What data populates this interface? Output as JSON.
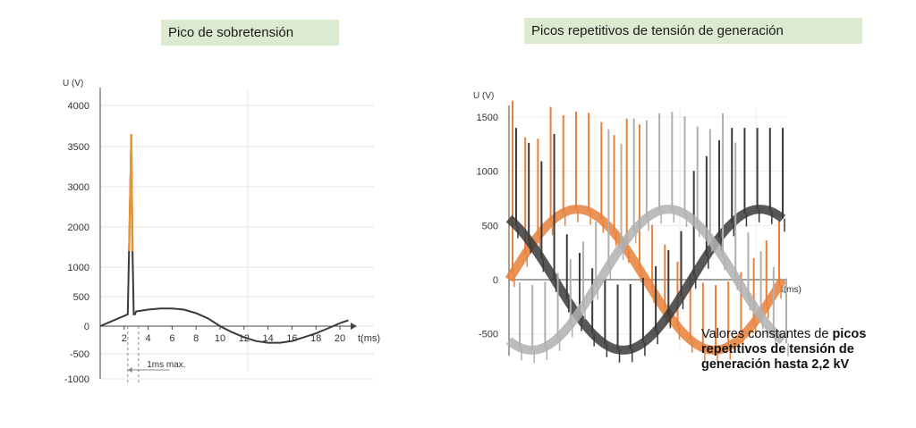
{
  "left_title": "Pico de sobretensión",
  "right_title": "Picos repetitivos de tensión de generación",
  "annotation": {
    "prefix": "Valores constantes de ",
    "bold": "picos repetitivos de tensión de generación hasta 2,2 kV"
  },
  "colors": {
    "orange": "#e8803a",
    "spike_orange": "#e9962c",
    "dark": "#3a3a3a",
    "gray": "#b0b0b0",
    "box": "#dcebcf"
  },
  "chart_data": [
    {
      "type": "line",
      "title": "Pico de sobretensión",
      "ylabel": "U (V)",
      "xlabel": "t(ms)",
      "yticks": [
        4000,
        3500,
        3000,
        2000,
        1000,
        500,
        0,
        -500,
        -1000
      ],
      "xticks": [
        2,
        4,
        6,
        8,
        10,
        12,
        14,
        16,
        18,
        20
      ],
      "x": [
        0,
        2.3,
        2.4,
        2.6,
        2.7,
        2.8,
        2.9,
        3.0,
        4,
        5,
        6,
        7,
        8,
        9,
        10,
        11,
        12,
        13,
        14,
        15,
        16,
        17,
        18,
        19,
        20,
        20.7
      ],
      "y": [
        0,
        200,
        1350,
        3650,
        1350,
        200,
        200,
        250,
        280,
        300,
        300,
        280,
        220,
        130,
        0,
        -110,
        -200,
        -270,
        -300,
        -300,
        -270,
        -200,
        -130,
        -40,
        50,
        100
      ],
      "spike_threshold": 1400,
      "annotation_text": "1ms max.",
      "grid": true
    },
    {
      "type": "line",
      "title": "Picos repetitivos de tensión de generación",
      "ylabel": "U (V)",
      "xlabel": "t(ms)",
      "yticks": [
        1500,
        1000,
        500,
        0,
        -500
      ],
      "ylim": [
        -650,
        1650
      ],
      "grid": true,
      "series": [
        {
          "color": "orange",
          "amplitude": 650,
          "phase": 0,
          "spike_level": 1650,
          "pulses": 22
        },
        {
          "color": "dark",
          "amplitude": 650,
          "phase": 120,
          "spike_level": 1400,
          "pulses": 22
        },
        {
          "color": "gray",
          "amplitude": 650,
          "phase": 240,
          "spike_level": 1650,
          "pulses": 22
        }
      ]
    }
  ]
}
